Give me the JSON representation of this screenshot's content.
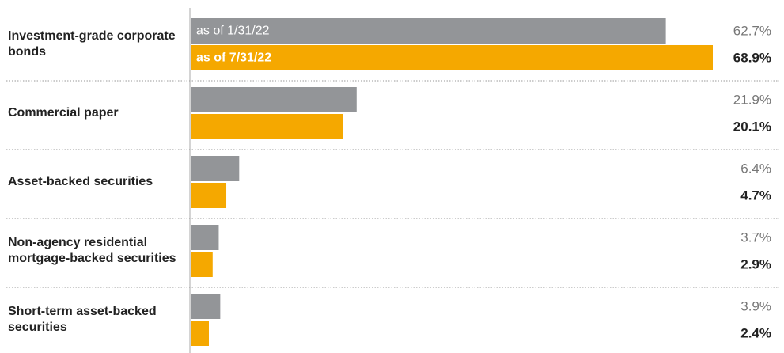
{
  "chart_data": {
    "type": "bar",
    "orientation": "horizontal",
    "categories": [
      "Investment-grade corporate bonds",
      "Commercial paper",
      "Asset-backed securities",
      "Non-agency residential mortgage-backed securities",
      "Short-term asset-backed securities"
    ],
    "series": [
      {
        "name": "as of 1/31/22",
        "color": "#939598",
        "values": [
          62.7,
          21.9,
          6.4,
          3.7,
          3.9
        ],
        "value_labels": [
          "62.7%",
          "21.9%",
          "6.4%",
          "3.7%",
          "3.9%"
        ]
      },
      {
        "name": "as of 7/31/22",
        "color": "#f5a800",
        "values": [
          68.9,
          20.1,
          4.7,
          2.9,
          2.4
        ],
        "value_labels": [
          "68.9%",
          "20.1%",
          "4.7%",
          "2.9%",
          "2.4%"
        ]
      }
    ]
  }
}
